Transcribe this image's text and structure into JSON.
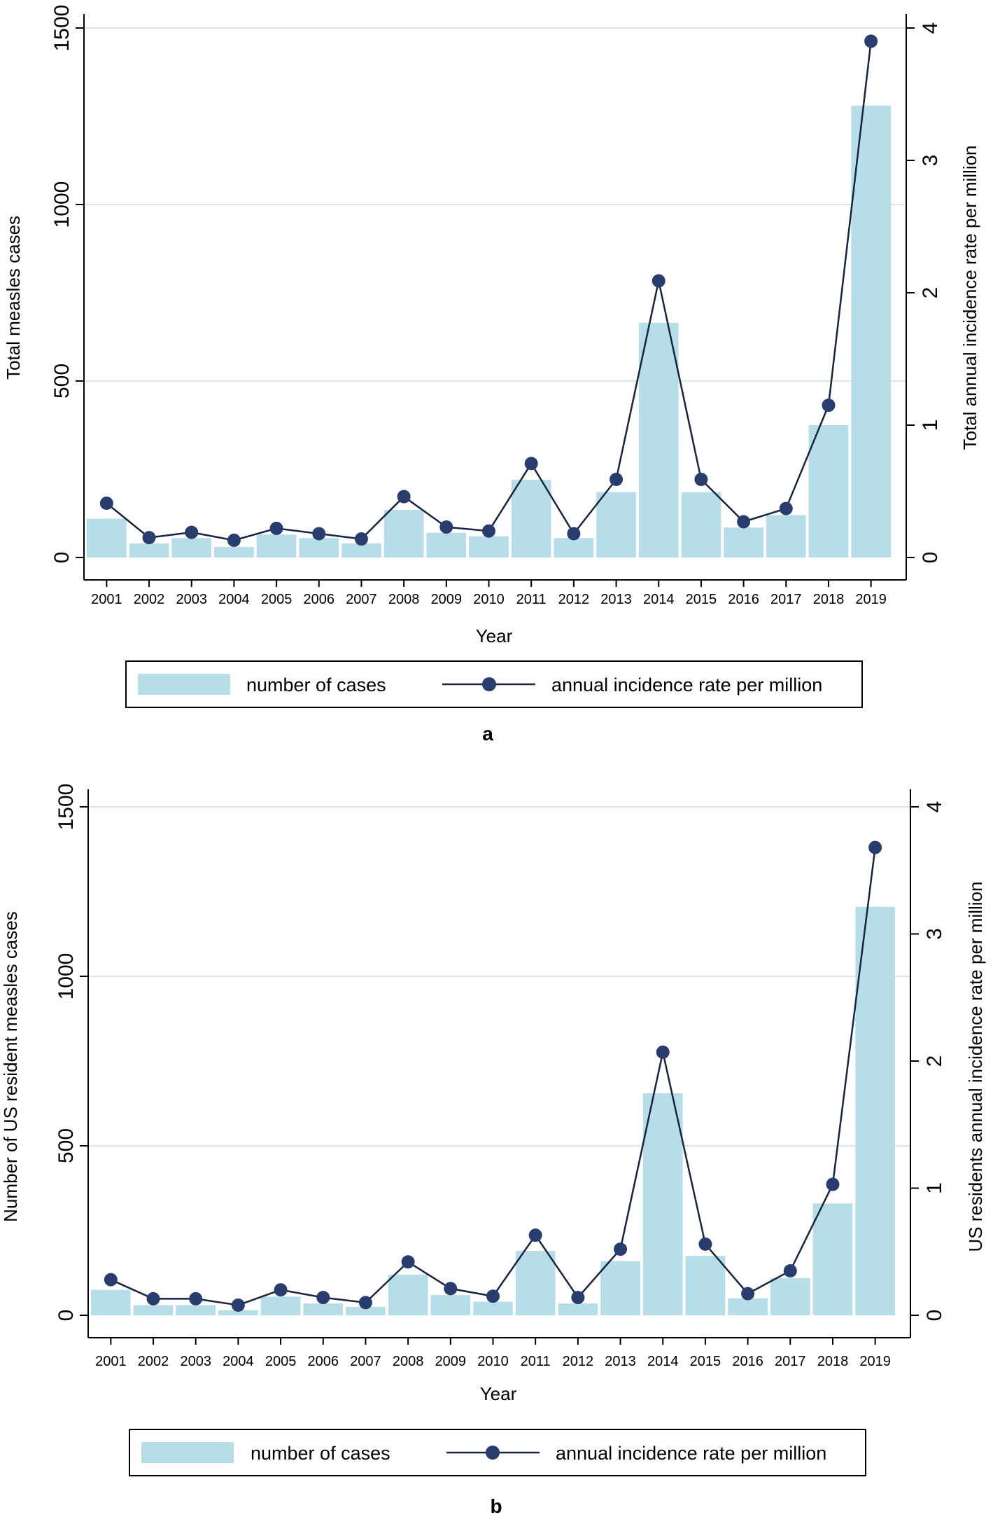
{
  "chart_data": [
    {
      "type": "bar+line",
      "panel_label": "a",
      "xlabel": "Year",
      "ylabel_left": "Total measles cases",
      "ylabel_right": "Total annual incidence rate per million",
      "ylim_left": [
        0,
        1500
      ],
      "ylim_right": [
        0,
        4
      ],
      "yticks_left": [
        "0",
        "500",
        "1000",
        "1500"
      ],
      "yticks_right": [
        "0",
        "1",
        "2",
        "3",
        "4"
      ],
      "categories": [
        "2001",
        "2002",
        "2003",
        "2004",
        "2005",
        "2006",
        "2007",
        "2008",
        "2009",
        "2010",
        "2011",
        "2012",
        "2013",
        "2014",
        "2015",
        "2016",
        "2017",
        "2018",
        "2019"
      ],
      "series": [
        {
          "name": "number of cases",
          "type": "bar",
          "axis": "left",
          "values": [
            110,
            40,
            55,
            30,
            65,
            55,
            40,
            135,
            70,
            60,
            220,
            55,
            185,
            665,
            185,
            85,
            120,
            375,
            1280
          ]
        },
        {
          "name": "annual incidence rate per million",
          "type": "line",
          "axis": "right",
          "values": [
            0.41,
            0.15,
            0.19,
            0.13,
            0.22,
            0.18,
            0.14,
            0.46,
            0.23,
            0.2,
            0.71,
            0.18,
            0.59,
            2.09,
            0.59,
            0.27,
            0.37,
            1.15,
            3.9
          ]
        }
      ],
      "legend": {
        "bar_label": "number of cases",
        "line_label": "annual incidence rate per million"
      },
      "grid": true
    },
    {
      "type": "bar+line",
      "panel_label": "b",
      "xlabel": "Year",
      "ylabel_left": "Number of US resident measles cases",
      "ylabel_right": "US residents annual incidence rate per million",
      "ylim_left": [
        0,
        1500
      ],
      "ylim_right": [
        0,
        4
      ],
      "yticks_left": [
        "0",
        "500",
        "1000",
        "1500"
      ],
      "yticks_right": [
        "0",
        "1",
        "2",
        "3",
        "4"
      ],
      "categories": [
        "2001",
        "2002",
        "2003",
        "2004",
        "2005",
        "2006",
        "2007",
        "2008",
        "2009",
        "2010",
        "2011",
        "2012",
        "2013",
        "2014",
        "2015",
        "2016",
        "2017",
        "2018",
        "2019"
      ],
      "series": [
        {
          "name": "number of cases",
          "type": "bar",
          "axis": "left",
          "values": [
            75,
            30,
            30,
            15,
            55,
            35,
            25,
            120,
            60,
            40,
            190,
            35,
            160,
            655,
            175,
            50,
            110,
            330,
            1205
          ]
        },
        {
          "name": "annual incidence rate per million",
          "type": "line",
          "axis": "right",
          "values": [
            0.28,
            0.13,
            0.13,
            0.08,
            0.2,
            0.14,
            0.1,
            0.42,
            0.21,
            0.15,
            0.63,
            0.14,
            0.52,
            2.07,
            0.56,
            0.17,
            0.35,
            1.03,
            3.68
          ]
        }
      ],
      "legend": {
        "bar_label": "number of cases",
        "line_label": "annual incidence rate per million"
      },
      "grid": true
    }
  ],
  "colors": {
    "bar_fill": "#b7dde8",
    "line_marker": "#283c6e",
    "line_stroke": "#1a2340",
    "grid": "#d9e6e8",
    "axis": "#000000"
  }
}
